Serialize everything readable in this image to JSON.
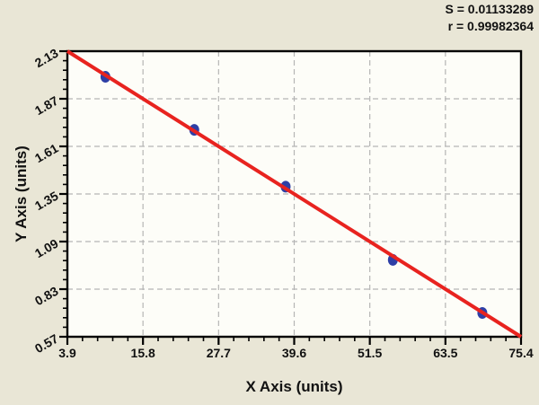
{
  "annotations": [
    {
      "text": "S = 0.01133289"
    },
    {
      "text": "r = 0.99982364"
    }
  ],
  "chart_data": {
    "type": "scatter",
    "title": "",
    "xlabel": "X Axis (units)",
    "ylabel": "Y Axis (units)",
    "xlim": [
      3.9,
      75.4
    ],
    "ylim": [
      0.57,
      2.13
    ],
    "x_tick_labels": [
      "3.9",
      "15.8",
      "27.7",
      "39.6",
      "51.5",
      "63.5",
      "75.4"
    ],
    "y_tick_labels": [
      "2.13",
      "1.87",
      "1.61",
      "1.35",
      "1.09",
      "0.83",
      "0.57"
    ],
    "minor_ticks_per_interval": 4,
    "grid": "dashed",
    "legend": "none",
    "points": [
      {
        "x": 9.9,
        "y": 1.99
      },
      {
        "x": 23.9,
        "y": 1.7
      },
      {
        "x": 38.3,
        "y": 1.39
      },
      {
        "x": 55.2,
        "y": 0.99
      },
      {
        "x": 69.3,
        "y": 0.7
      }
    ],
    "fit_line": {
      "x1": 3.9,
      "y1": 2.13,
      "x2": 75.4,
      "y2": 0.57
    },
    "stats": {
      "S": "0.01133289",
      "r": "0.99982364"
    }
  },
  "colors": {
    "background": "#e9e6d6",
    "plot_background": "#fdfdf8",
    "grid": "#b5b5b5",
    "frame": "#000000",
    "fit_line": "#e8231f",
    "point": "#2e3fa6",
    "text": "#111111"
  }
}
